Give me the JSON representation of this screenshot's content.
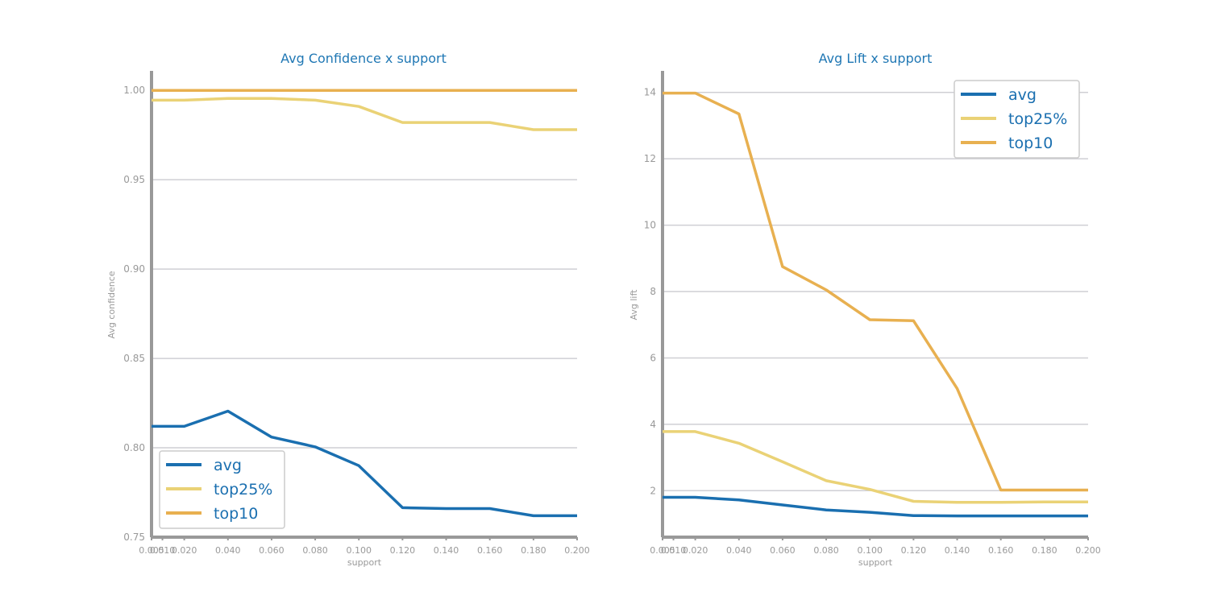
{
  "colors": {
    "avg": "#1a6fb0",
    "top25": "#ead276",
    "top10": "#e8b050",
    "grid": "#cfcfd4",
    "axis": "#999999",
    "title": "#1f77b4"
  },
  "chart_data": [
    {
      "type": "line",
      "title": "Avg Confidence x support",
      "xlabel": "support",
      "ylabel": "Avg confidence",
      "xlim": [
        0.005,
        0.2
      ],
      "ylim": [
        0.75,
        1.01
      ],
      "xticks": [
        0.005,
        0.01,
        0.02,
        0.04,
        0.06,
        0.08,
        0.1,
        0.12,
        0.14,
        0.16,
        0.18,
        0.2
      ],
      "xtick_labels": [
        "0.005",
        "0.010",
        "0.020",
        "0.040",
        "0.060",
        "0.080",
        "0.100",
        "0.120",
        "0.140",
        "0.160",
        "0.180",
        "0.200"
      ],
      "yticks": [
        0.75,
        0.8,
        0.85,
        0.9,
        0.95,
        1.0
      ],
      "ytick_labels": [
        "0.75",
        "0.80",
        "0.85",
        "0.90",
        "0.95",
        "1.00"
      ],
      "grid": "horizontal",
      "legend": "lower-left",
      "x": [
        0.005,
        0.01,
        0.02,
        0.04,
        0.06,
        0.08,
        0.1,
        0.12,
        0.14,
        0.16,
        0.18,
        0.2
      ],
      "series": [
        {
          "name": "avg",
          "color": "#1a6fb0",
          "values": [
            0.812,
            0.812,
            0.812,
            0.8205,
            0.806,
            0.8005,
            0.79,
            0.7665,
            0.766,
            0.766,
            0.762,
            0.762
          ]
        },
        {
          "name": "top25%",
          "color": "#ead276",
          "values": [
            0.9945,
            0.9945,
            0.9945,
            0.9955,
            0.9955,
            0.9945,
            0.991,
            0.982,
            0.982,
            0.982,
            0.978,
            0.978
          ]
        },
        {
          "name": "top10",
          "color": "#e8b050",
          "values": [
            1.0,
            1.0,
            1.0,
            1.0,
            1.0,
            1.0,
            1.0,
            1.0,
            1.0,
            1.0,
            1.0,
            1.0
          ]
        }
      ]
    },
    {
      "type": "line",
      "title": "Avg Lift x support",
      "xlabel": "support",
      "ylabel": "Avg lift",
      "xlim": [
        0.005,
        0.2
      ],
      "ylim": [
        0.6,
        14.6
      ],
      "xticks": [
        0.005,
        0.01,
        0.02,
        0.04,
        0.06,
        0.08,
        0.1,
        0.12,
        0.14,
        0.16,
        0.18,
        0.2
      ],
      "xtick_labels": [
        "0.005",
        "0.010",
        "0.020",
        "0.040",
        "0.060",
        "0.080",
        "0.100",
        "0.120",
        "0.140",
        "0.160",
        "0.180",
        "0.200"
      ],
      "yticks": [
        2,
        4,
        6,
        8,
        10,
        12,
        14
      ],
      "ytick_labels": [
        "2",
        "4",
        "6",
        "8",
        "10",
        "12",
        "14"
      ],
      "grid": "horizontal",
      "legend": "upper-right",
      "x": [
        0.005,
        0.01,
        0.02,
        0.04,
        0.06,
        0.08,
        0.1,
        0.12,
        0.14,
        0.16,
        0.18,
        0.2
      ],
      "series": [
        {
          "name": "avg",
          "color": "#1a6fb0",
          "values": [
            1.8,
            1.8,
            1.8,
            1.72,
            1.57,
            1.42,
            1.35,
            1.25,
            1.24,
            1.24,
            1.24,
            1.24
          ]
        },
        {
          "name": "top25%",
          "color": "#ead276",
          "values": [
            3.78,
            3.78,
            3.78,
            3.43,
            2.87,
            2.3,
            2.04,
            1.68,
            1.65,
            1.65,
            1.66,
            1.66
          ]
        },
        {
          "name": "top10",
          "color": "#e8b050",
          "values": [
            13.98,
            13.98,
            13.98,
            13.35,
            8.75,
            8.05,
            7.15,
            7.12,
            5.08,
            2.02,
            2.02,
            2.02
          ]
        }
      ]
    }
  ]
}
